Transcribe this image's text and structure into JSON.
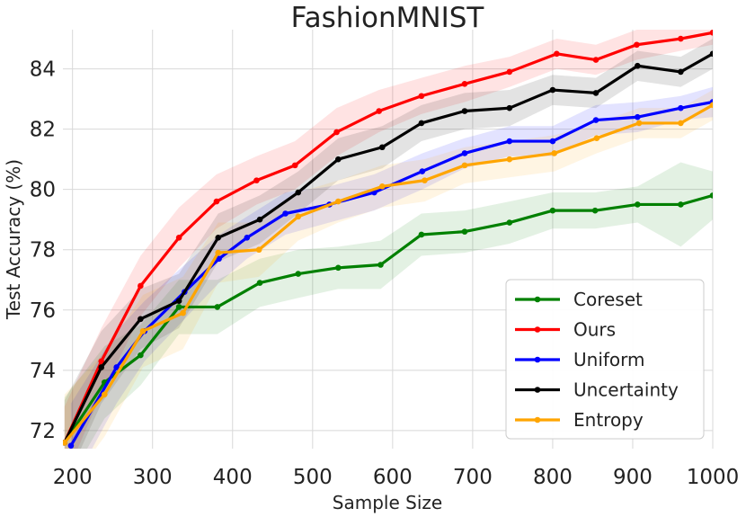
{
  "chart_data": {
    "type": "line",
    "title": "FashionMNIST",
    "xlabel": "Sample Size",
    "ylabel": "Test Accuracy (%)",
    "xlim": [
      188,
      1000
    ],
    "ylim": [
      71.4,
      85.3
    ],
    "xticks": [
      200,
      300,
      400,
      500,
      600,
      700,
      800,
      900,
      1000
    ],
    "yticks": [
      72,
      74,
      76,
      78,
      80,
      82,
      84
    ],
    "grid": true,
    "legend_position": "bottom-right",
    "series": [
      {
        "name": "Coreset",
        "color": "#008000",
        "x": [
          190,
          240,
          285,
          333,
          381,
          434,
          482,
          532,
          585,
          636,
          690,
          746,
          800,
          853,
          906,
          960,
          1000
        ],
        "y": [
          71.6,
          73.6,
          74.5,
          76.1,
          76.1,
          76.9,
          77.2,
          77.4,
          77.5,
          78.5,
          78.6,
          78.9,
          79.3,
          79.3,
          79.5,
          79.5,
          79.8
        ],
        "band": [
          1.5,
          1.2,
          1.0,
          0.9,
          0.9,
          0.8,
          0.8,
          0.7,
          0.8,
          0.7,
          0.7,
          0.7,
          0.6,
          0.6,
          0.6,
          1.4,
          0.8
        ]
      },
      {
        "name": "Ours",
        "color": "#ff0000",
        "x": [
          190,
          236,
          285,
          333,
          380,
          430,
          478,
          530,
          583,
          636,
          690,
          746,
          805,
          854,
          905,
          960,
          1000
        ],
        "y": [
          71.6,
          74.3,
          76.8,
          78.4,
          79.6,
          80.3,
          80.8,
          81.9,
          82.6,
          83.1,
          83.5,
          83.9,
          84.5,
          84.3,
          84.8,
          85.0,
          85.2
        ],
        "band": [
          1.2,
          1.1,
          1.0,
          1.0,
          0.9,
          0.8,
          0.8,
          0.8,
          0.7,
          0.6,
          0.6,
          0.5,
          0.5,
          0.5,
          0.5,
          0.4,
          0.4
        ]
      },
      {
        "name": "Uniform",
        "color": "#0000ff",
        "x": [
          198,
          255,
          290,
          340,
          383,
          418,
          466,
          521,
          577,
          637,
          690,
          746,
          800,
          854,
          906,
          960,
          1000
        ],
        "y": [
          71.5,
          74.1,
          75.3,
          76.6,
          77.7,
          78.4,
          79.2,
          79.5,
          79.9,
          80.6,
          81.2,
          81.6,
          81.6,
          82.3,
          82.4,
          82.7,
          82.9
        ],
        "band": [
          1.4,
          1.2,
          1.0,
          0.9,
          0.8,
          0.7,
          0.7,
          0.6,
          0.6,
          0.6,
          0.5,
          0.5,
          0.5,
          0.5,
          0.5,
          0.4,
          0.5
        ]
      },
      {
        "name": "Uncertainty",
        "color": "#000000",
        "x": [
          190,
          236,
          285,
          333,
          382,
          434,
          482,
          532,
          587,
          636,
          690,
          746,
          800,
          854,
          906,
          960,
          1000
        ],
        "y": [
          71.6,
          74.1,
          75.7,
          76.3,
          78.4,
          79.0,
          79.9,
          81.0,
          81.4,
          82.2,
          82.6,
          82.7,
          83.3,
          83.2,
          84.1,
          83.9,
          84.5
        ],
        "band": [
          1.4,
          1.2,
          1.0,
          0.9,
          0.8,
          0.8,
          0.7,
          0.7,
          0.7,
          0.6,
          0.6,
          0.6,
          0.5,
          0.5,
          0.5,
          0.5,
          0.5
        ]
      },
      {
        "name": "Entropy",
        "color": "#ffa500",
        "x": [
          190,
          240,
          288,
          338,
          382,
          433,
          482,
          532,
          587,
          640,
          690,
          746,
          802,
          855,
          908,
          960,
          1000
        ],
        "y": [
          71.6,
          73.2,
          75.3,
          75.9,
          77.9,
          78.0,
          79.1,
          79.6,
          80.1,
          80.3,
          80.8,
          81.0,
          81.2,
          81.7,
          82.2,
          82.2,
          82.8
        ],
        "band": [
          1.6,
          1.4,
          1.2,
          1.2,
          1.0,
          0.9,
          0.8,
          0.7,
          0.7,
          0.7,
          0.6,
          0.6,
          0.6,
          0.5,
          0.5,
          0.5,
          0.5
        ]
      }
    ]
  }
}
